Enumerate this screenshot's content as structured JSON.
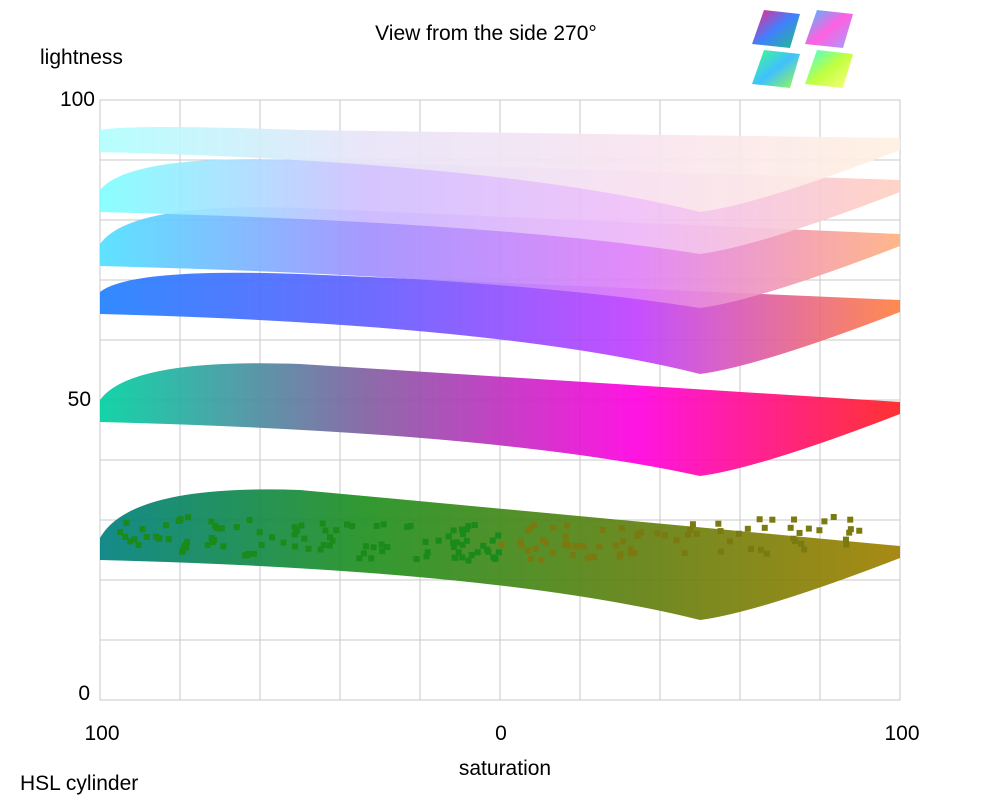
{
  "chart_data": {
    "type": "scatter",
    "title": "View from the side 270°",
    "xlabel": "saturation",
    "ylabel": "lightness",
    "x_ticks": [
      "100",
      "0",
      "100"
    ],
    "y_ticks": [
      "100",
      "50",
      "0"
    ],
    "xlim": [
      -100,
      100
    ],
    "ylim": [
      0,
      100
    ],
    "grid": true,
    "caption": "HSL cylinder",
    "view_angle_deg": 270,
    "surfaces": [
      {
        "lightness_left": 95,
        "lightness_right": 93,
        "peak_lightness": 95,
        "colors": [
          "#b0ffff",
          "#e8e4f8",
          "#f8e4f0",
          "#fff0e0"
        ]
      },
      {
        "lightness_left": 85,
        "lightness_right": 86,
        "peak_lightness": 90,
        "colors": [
          "#80ffff",
          "#d0c0ff",
          "#f0c0f8",
          "#ffd0c0"
        ]
      },
      {
        "lightness_left": 76,
        "lightness_right": 77,
        "peak_lightness": 82,
        "colors": [
          "#50e0ff",
          "#a090ff",
          "#e080f8",
          "#ffb080"
        ]
      },
      {
        "lightness_left": 68,
        "lightness_right": 66,
        "peak_lightness": 71,
        "colors": [
          "#2080ff",
          "#6060ff",
          "#c040ff",
          "#ff8040"
        ]
      },
      {
        "lightness_left": 50,
        "lightness_right": 49,
        "peak_lightness": 56,
        "colors": [
          "#00d0a0",
          "#8060a0",
          "#ff00e0",
          "#ff2020"
        ]
      },
      {
        "lightness_left": 27,
        "lightness_right": 25,
        "peak_lightness": 35,
        "colors": [
          "#008080",
          "#209020",
          "#608010",
          "#a08000"
        ]
      }
    ]
  },
  "thumbnails": {
    "colors": [
      [
        "#ff2080",
        "#4080ff",
        "#20c080"
      ],
      [
        "#40c0ff",
        "#ff60e0",
        "#a0a0ff"
      ],
      [
        "#40ff80",
        "#40c0ff",
        "#a0ff40"
      ],
      [
        "#40ffe0",
        "#c0ff40",
        "#ffff80"
      ]
    ]
  }
}
